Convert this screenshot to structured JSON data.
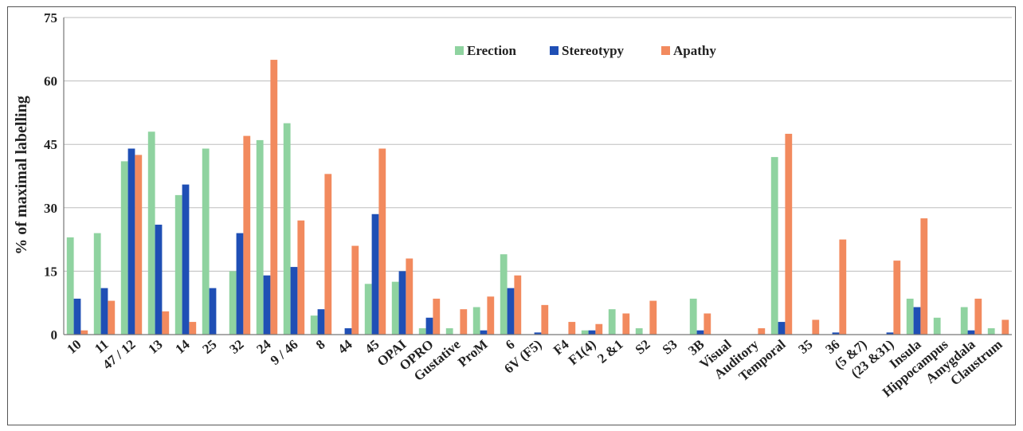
{
  "chart_data": {
    "type": "bar",
    "ylabel": "% of maximal labelling",
    "xlabel": "",
    "ylim": [
      0,
      75
    ],
    "yticks": [
      "0",
      "15",
      "30",
      "45",
      "60",
      "75"
    ],
    "grid": true,
    "legend_position": "top-center",
    "categories": [
      "10",
      "11",
      "47 / 12",
      "13",
      "14",
      "25",
      "32",
      "24",
      "9 / 46",
      "8",
      "44",
      "45",
      "OPAI",
      "OPRO",
      "Gustative",
      "ProM",
      "6",
      "6V (F5)",
      "F4",
      "F1(4)",
      "2 &1",
      "S2",
      "S3",
      "3B",
      "Visual",
      "Auditory",
      "Temporal",
      "35",
      "36",
      "(5 &7)",
      "(23 &31)",
      "Insula",
      "Hippocampus",
      "Amygdala",
      "Claustrum"
    ],
    "series": [
      {
        "name": "Erection",
        "color": "#8fd3a0",
        "values": [
          23,
          24,
          41,
          48,
          33,
          44,
          15,
          46,
          50,
          4.5,
          0,
          12,
          12.5,
          1.5,
          1.5,
          6.5,
          19,
          0,
          0,
          1,
          6,
          1.5,
          0,
          8.5,
          0,
          0,
          42,
          0,
          0,
          0,
          0,
          8.5,
          4,
          6.5,
          1.5
        ]
      },
      {
        "name": "Stereotypy",
        "color": "#1f4fb5",
        "values": [
          8.5,
          11,
          44,
          26,
          35.5,
          11,
          24,
          14,
          16,
          6,
          1.5,
          28.5,
          15,
          4,
          0,
          1,
          11,
          0.5,
          0,
          1,
          0,
          0,
          0,
          1,
          0,
          0,
          3,
          0,
          0.5,
          0,
          0.5,
          6.5,
          0,
          1,
          0
        ]
      },
      {
        "name": "Apathy",
        "color": "#f28a5e",
        "values": [
          1,
          8,
          42.5,
          5.5,
          3,
          0,
          47,
          65,
          27,
          38,
          21,
          44,
          18,
          8.5,
          6,
          9,
          14,
          7,
          3,
          2.5,
          5,
          8,
          0,
          5,
          0,
          1.5,
          47.5,
          3.5,
          22.5,
          0,
          17.5,
          27.5,
          0,
          8.5,
          3.5
        ]
      }
    ]
  }
}
